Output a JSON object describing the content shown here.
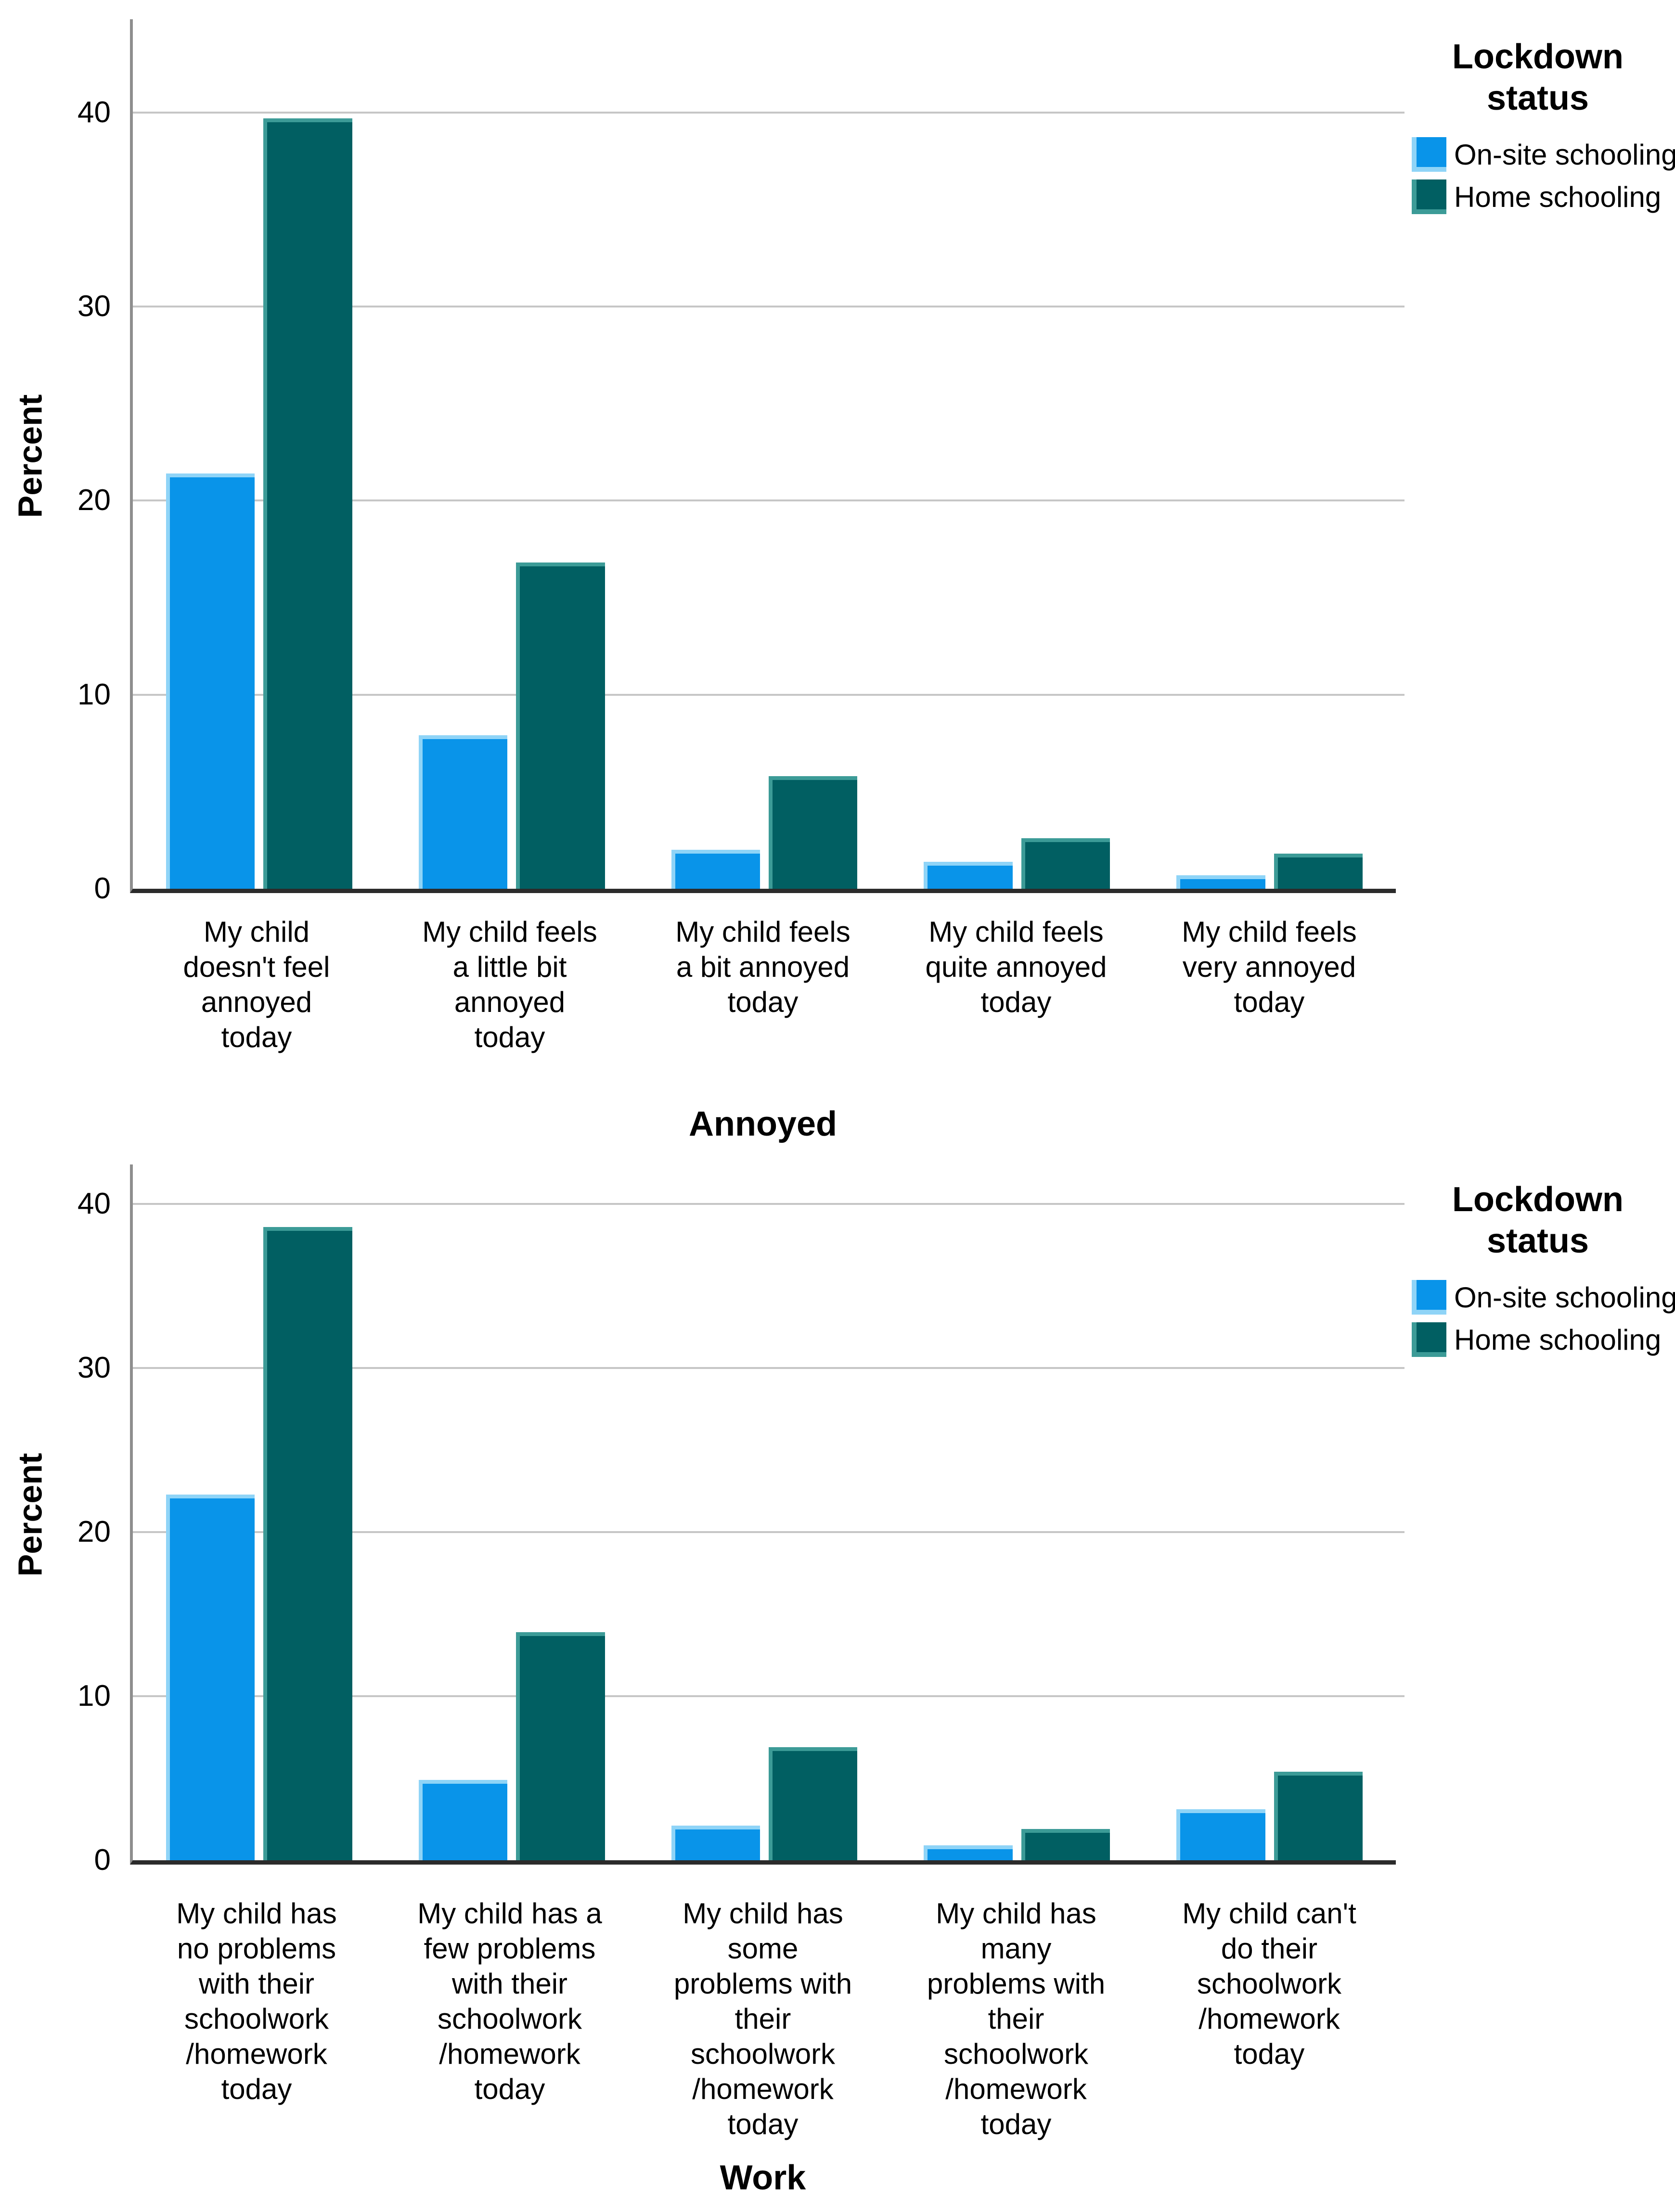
{
  "colors": {
    "onsite": "#0994E9",
    "onsite_edge": "#8FD4F7",
    "home": "#015F62",
    "home_edge": "#3C9B97",
    "gridline": "#C6C6C6",
    "axis": "#8E8E8E",
    "baseline": "#2B2B2B",
    "text": "#000000",
    "background": "#FFFFFF"
  },
  "legend": {
    "title": [
      "Lockdown",
      "status"
    ],
    "items": [
      {
        "label": "On-site schooling",
        "color": "#0994E9"
      },
      {
        "label": "Home schooling",
        "color": "#015F62"
      }
    ]
  },
  "chart_data": [
    {
      "type": "bar",
      "title": "",
      "xlabel": "Annoyed",
      "ylabel": "Percent",
      "ylim": [
        0,
        44.8
      ],
      "yticks": [
        0,
        10,
        20,
        30,
        40
      ],
      "grid": true,
      "legend_title": "Lockdown status",
      "legend_position": "top-right",
      "categories": [
        [
          "My child",
          "doesn't feel",
          "annoyed",
          "today"
        ],
        [
          "My child feels",
          "a little bit",
          "annoyed",
          "today"
        ],
        [
          "My child feels",
          "a bit annoyed",
          "today"
        ],
        [
          "My child feels",
          "quite annoyed",
          "today"
        ],
        [
          "My child feels",
          "very annoyed",
          "today"
        ]
      ],
      "series": [
        {
          "name": "On-site schooling",
          "values": [
            21.4,
            7.9,
            2.0,
            1.4,
            0.7
          ]
        },
        {
          "name": "Home schooling",
          "values": [
            39.7,
            16.8,
            5.8,
            2.6,
            1.8
          ]
        }
      ]
    },
    {
      "type": "bar",
      "title": "",
      "xlabel": "Work",
      "ylabel": "Percent",
      "ylim": [
        0,
        42.4
      ],
      "yticks": [
        0,
        10,
        20,
        30,
        40
      ],
      "grid": true,
      "legend_title": "Lockdown status",
      "legend_position": "top-right",
      "categories": [
        [
          "My child has",
          "no problems",
          "with their",
          "schoolwork",
          "/homework",
          "today"
        ],
        [
          "My child has a",
          "few problems",
          "with their",
          "schoolwork",
          "/homework",
          "today"
        ],
        [
          "My child has",
          "some",
          "problems with",
          "their",
          "schoolwork",
          "/homework",
          "today"
        ],
        [
          "My child has",
          "many",
          "problems with",
          "their",
          "schoolwork",
          "/homework",
          "today"
        ],
        [
          "My child can't",
          "do their",
          "schoolwork",
          "/homework",
          "today"
        ]
      ],
      "series": [
        {
          "name": "On-site schooling",
          "values": [
            22.3,
            4.9,
            2.1,
            0.9,
            3.1
          ]
        },
        {
          "name": "Home schooling",
          "values": [
            38.6,
            13.9,
            6.9,
            1.9,
            5.4
          ]
        }
      ]
    }
  ]
}
